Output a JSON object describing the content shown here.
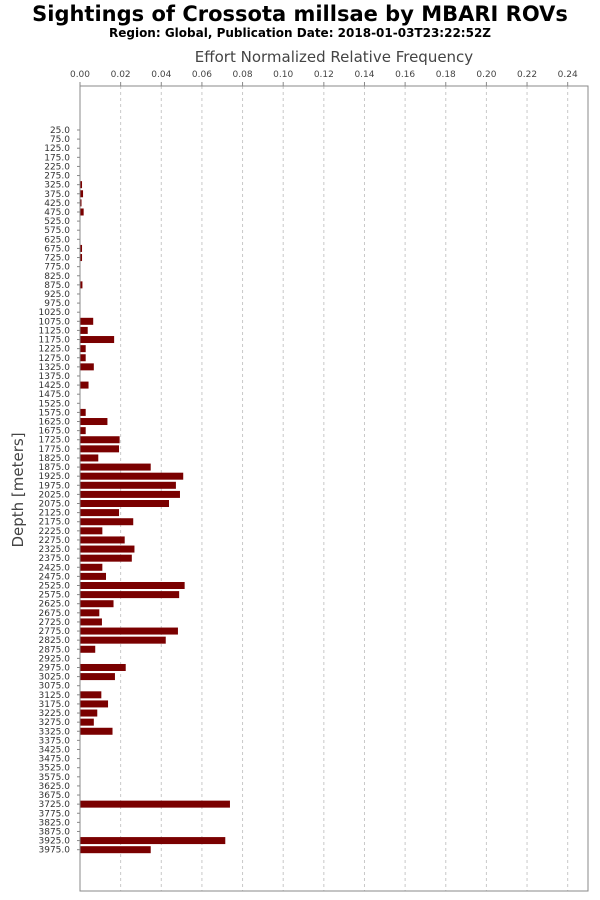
{
  "chart_data": {
    "type": "bar",
    "orientation": "horizontal",
    "title": "Sightings of Crossota millsae by MBARI ROVs",
    "subtitle": "Region: Global, Publication Date: 2018-01-03T23:22:52Z",
    "xlabel": "Effort Normalized Relative Frequency",
    "ylabel": "Depth [meters]",
    "xlim": [
      0,
      0.25
    ],
    "x_ticks": [
      "0.00",
      "0.02",
      "0.04",
      "0.06",
      "0.08",
      "0.10",
      "0.12",
      "0.14",
      "0.16",
      "0.18",
      "0.20",
      "0.22",
      "0.24"
    ],
    "grid": "vertical dashed",
    "bar_color": "#7a0000",
    "categories": [
      "25.0",
      "75.0",
      "125.0",
      "175.0",
      "225.0",
      "275.0",
      "325.0",
      "375.0",
      "425.0",
      "475.0",
      "525.0",
      "575.0",
      "625.0",
      "675.0",
      "725.0",
      "775.0",
      "825.0",
      "875.0",
      "925.0",
      "975.0",
      "1025.0",
      "1075.0",
      "1125.0",
      "1175.0",
      "1225.0",
      "1275.0",
      "1325.0",
      "1375.0",
      "1425.0",
      "1475.0",
      "1525.0",
      "1575.0",
      "1625.0",
      "1675.0",
      "1725.0",
      "1775.0",
      "1825.0",
      "1875.0",
      "1925.0",
      "1975.0",
      "2025.0",
      "2075.0",
      "2125.0",
      "2175.0",
      "2225.0",
      "2275.0",
      "2325.0",
      "2375.0",
      "2425.0",
      "2475.0",
      "2525.0",
      "2575.0",
      "2625.0",
      "2675.0",
      "2725.0",
      "2775.0",
      "2825.0",
      "2875.0",
      "2925.0",
      "2975.0",
      "3025.0",
      "3075.0",
      "3125.0",
      "3175.0",
      "3225.0",
      "3275.0",
      "3325.0",
      "3375.0",
      "3425.0",
      "3475.0",
      "3525.0",
      "3575.0",
      "3625.0",
      "3675.0",
      "3725.0",
      "3775.0",
      "3825.0",
      "3875.0",
      "3925.0",
      "3975.0"
    ],
    "values": [
      0,
      0,
      0,
      0,
      0,
      0,
      0.001,
      0.0015,
      0.0007,
      0.0018,
      0,
      0,
      0,
      0.001,
      0.001,
      0,
      0,
      0.0012,
      0,
      0,
      0,
      0.0065,
      0.0038,
      0.0168,
      0.0028,
      0.0028,
      0.0068,
      0,
      0.0042,
      0,
      0,
      0.0028,
      0.0135,
      0.0028,
      0.0195,
      0.0192,
      0.009,
      0.0348,
      0.0508,
      0.0472,
      0.0492,
      0.0438,
      0.0192,
      0.0262,
      0.011,
      0.022,
      0.0268,
      0.0255,
      0.011,
      0.0128,
      0.0515,
      0.0488,
      0.0165,
      0.0095,
      0.0108,
      0.0482,
      0.0422,
      0.0075,
      0,
      0.0225,
      0.0172,
      0,
      0.0105,
      0.0138,
      0.0085,
      0.0068,
      0.016,
      0,
      0,
      0,
      0,
      0,
      0,
      0,
      0.0738,
      0,
      0,
      0,
      0.0715,
      0.0348
    ]
  }
}
